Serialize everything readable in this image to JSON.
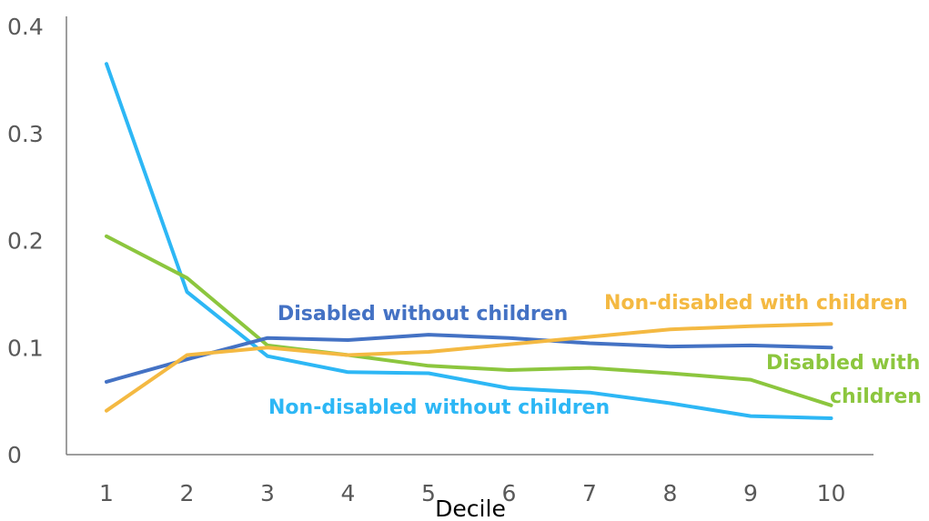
{
  "chart_data": {
    "type": "line",
    "title": "",
    "xlabel": "Decile",
    "ylabel": "",
    "x": [
      1,
      2,
      3,
      4,
      5,
      6,
      7,
      8,
      9,
      10
    ],
    "ylim": [
      0,
      0.4
    ],
    "y_ticks": [
      "0",
      "0.1",
      "0.2",
      "0.3",
      "0.4"
    ],
    "x_ticks": [
      "1",
      "2",
      "3",
      "4",
      "5",
      "6",
      "7",
      "8",
      "9",
      "10"
    ],
    "grid": false,
    "legend": "inline labels",
    "series": [
      {
        "name": "Non-disabled without children",
        "color": "#2db7f5",
        "values": [
          0.365,
          0.152,
          0.092,
          0.077,
          0.076,
          0.062,
          0.058,
          0.048,
          0.036,
          0.034
        ]
      },
      {
        "name": "Disabled with children",
        "color": "#8cc63e",
        "values": [
          0.204,
          0.165,
          0.102,
          0.093,
          0.083,
          0.079,
          0.081,
          0.076,
          0.07,
          0.046
        ]
      },
      {
        "name": "Disabled without children",
        "color": "#4472c4",
        "values": [
          0.068,
          0.089,
          0.109,
          0.107,
          0.112,
          0.109,
          0.104,
          0.101,
          0.102,
          0.1
        ]
      },
      {
        "name": "Non-disabled with children",
        "color": "#f4b942",
        "values": [
          0.041,
          0.093,
          0.1,
          0.093,
          0.096,
          0.103,
          0.11,
          0.117,
          0.12,
          0.122
        ]
      }
    ],
    "annotations": {
      "disabled_without_children": "Disabled without children",
      "non_disabled_with_children": "Non-disabled with children",
      "disabled_with": "Disabled with",
      "children": "children",
      "non_disabled_without_children": "Non-disabled without children"
    }
  }
}
